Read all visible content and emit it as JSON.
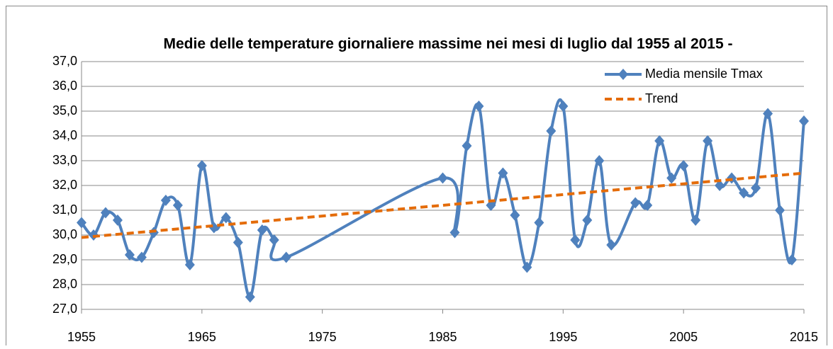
{
  "chart_data": {
    "type": "line",
    "title": "Medie delle temperature giornaliere massime nei mesi di luglio dal 1955 al 2015 -",
    "series": [
      {
        "name": "Media mensile Tmax",
        "color": "#4f81bd",
        "smooth": true,
        "marker": "diamond",
        "x": [
          1955,
          1956,
          1957,
          1958,
          1959,
          1960,
          1961,
          1962,
          1963,
          1964,
          1965,
          1966,
          1967,
          1968,
          1969,
          1970,
          1971,
          1972,
          1985,
          1986,
          1987,
          1988,
          1989,
          1990,
          1991,
          1992,
          1993,
          1994,
          1995,
          1996,
          1997,
          1998,
          1999,
          2001,
          2002,
          2003,
          2004,
          2005,
          2006,
          2007,
          2008,
          2009,
          2010,
          2011,
          2012,
          2013,
          2014,
          2015
        ],
        "values": [
          30.5,
          30.0,
          30.9,
          30.6,
          29.2,
          29.1,
          30.1,
          31.4,
          31.2,
          28.8,
          32.8,
          30.3,
          30.7,
          29.7,
          27.5,
          30.2,
          29.8,
          29.1,
          32.3,
          30.1,
          33.6,
          35.2,
          31.2,
          32.5,
          30.8,
          28.7,
          30.5,
          34.2,
          35.2,
          29.8,
          30.6,
          33.0,
          29.6,
          31.3,
          31.2,
          33.8,
          32.3,
          32.8,
          30.6,
          33.8,
          32.0,
          32.3,
          31.7,
          31.9,
          34.9,
          31.0,
          29.0,
          34.6
        ]
      },
      {
        "name": "Trend",
        "color": "#e46c0a",
        "dashed": true,
        "x": [
          1955,
          2015
        ],
        "values": [
          29.9,
          32.5
        ]
      }
    ],
    "xlim": [
      1955,
      2015
    ],
    "xticks": [
      1955,
      1965,
      1975,
      1985,
      1995,
      2005,
      2015
    ],
    "ylim": [
      27,
      37
    ],
    "yticks": [
      {
        "value": 27,
        "label": "27,0"
      },
      {
        "value": 28,
        "label": "28,0"
      },
      {
        "value": 29,
        "label": "29,0"
      },
      {
        "value": 30,
        "label": "30,0"
      },
      {
        "value": 31,
        "label": "31,0"
      },
      {
        "value": 32,
        "label": "32,0"
      },
      {
        "value": 33,
        "label": "33,0"
      },
      {
        "value": 34,
        "label": "34,0"
      },
      {
        "value": 35,
        "label": "35,0"
      },
      {
        "value": 36,
        "label": "36,0"
      },
      {
        "value": 37,
        "label": "37,0"
      }
    ],
    "grid": true,
    "legend": "top-right"
  }
}
